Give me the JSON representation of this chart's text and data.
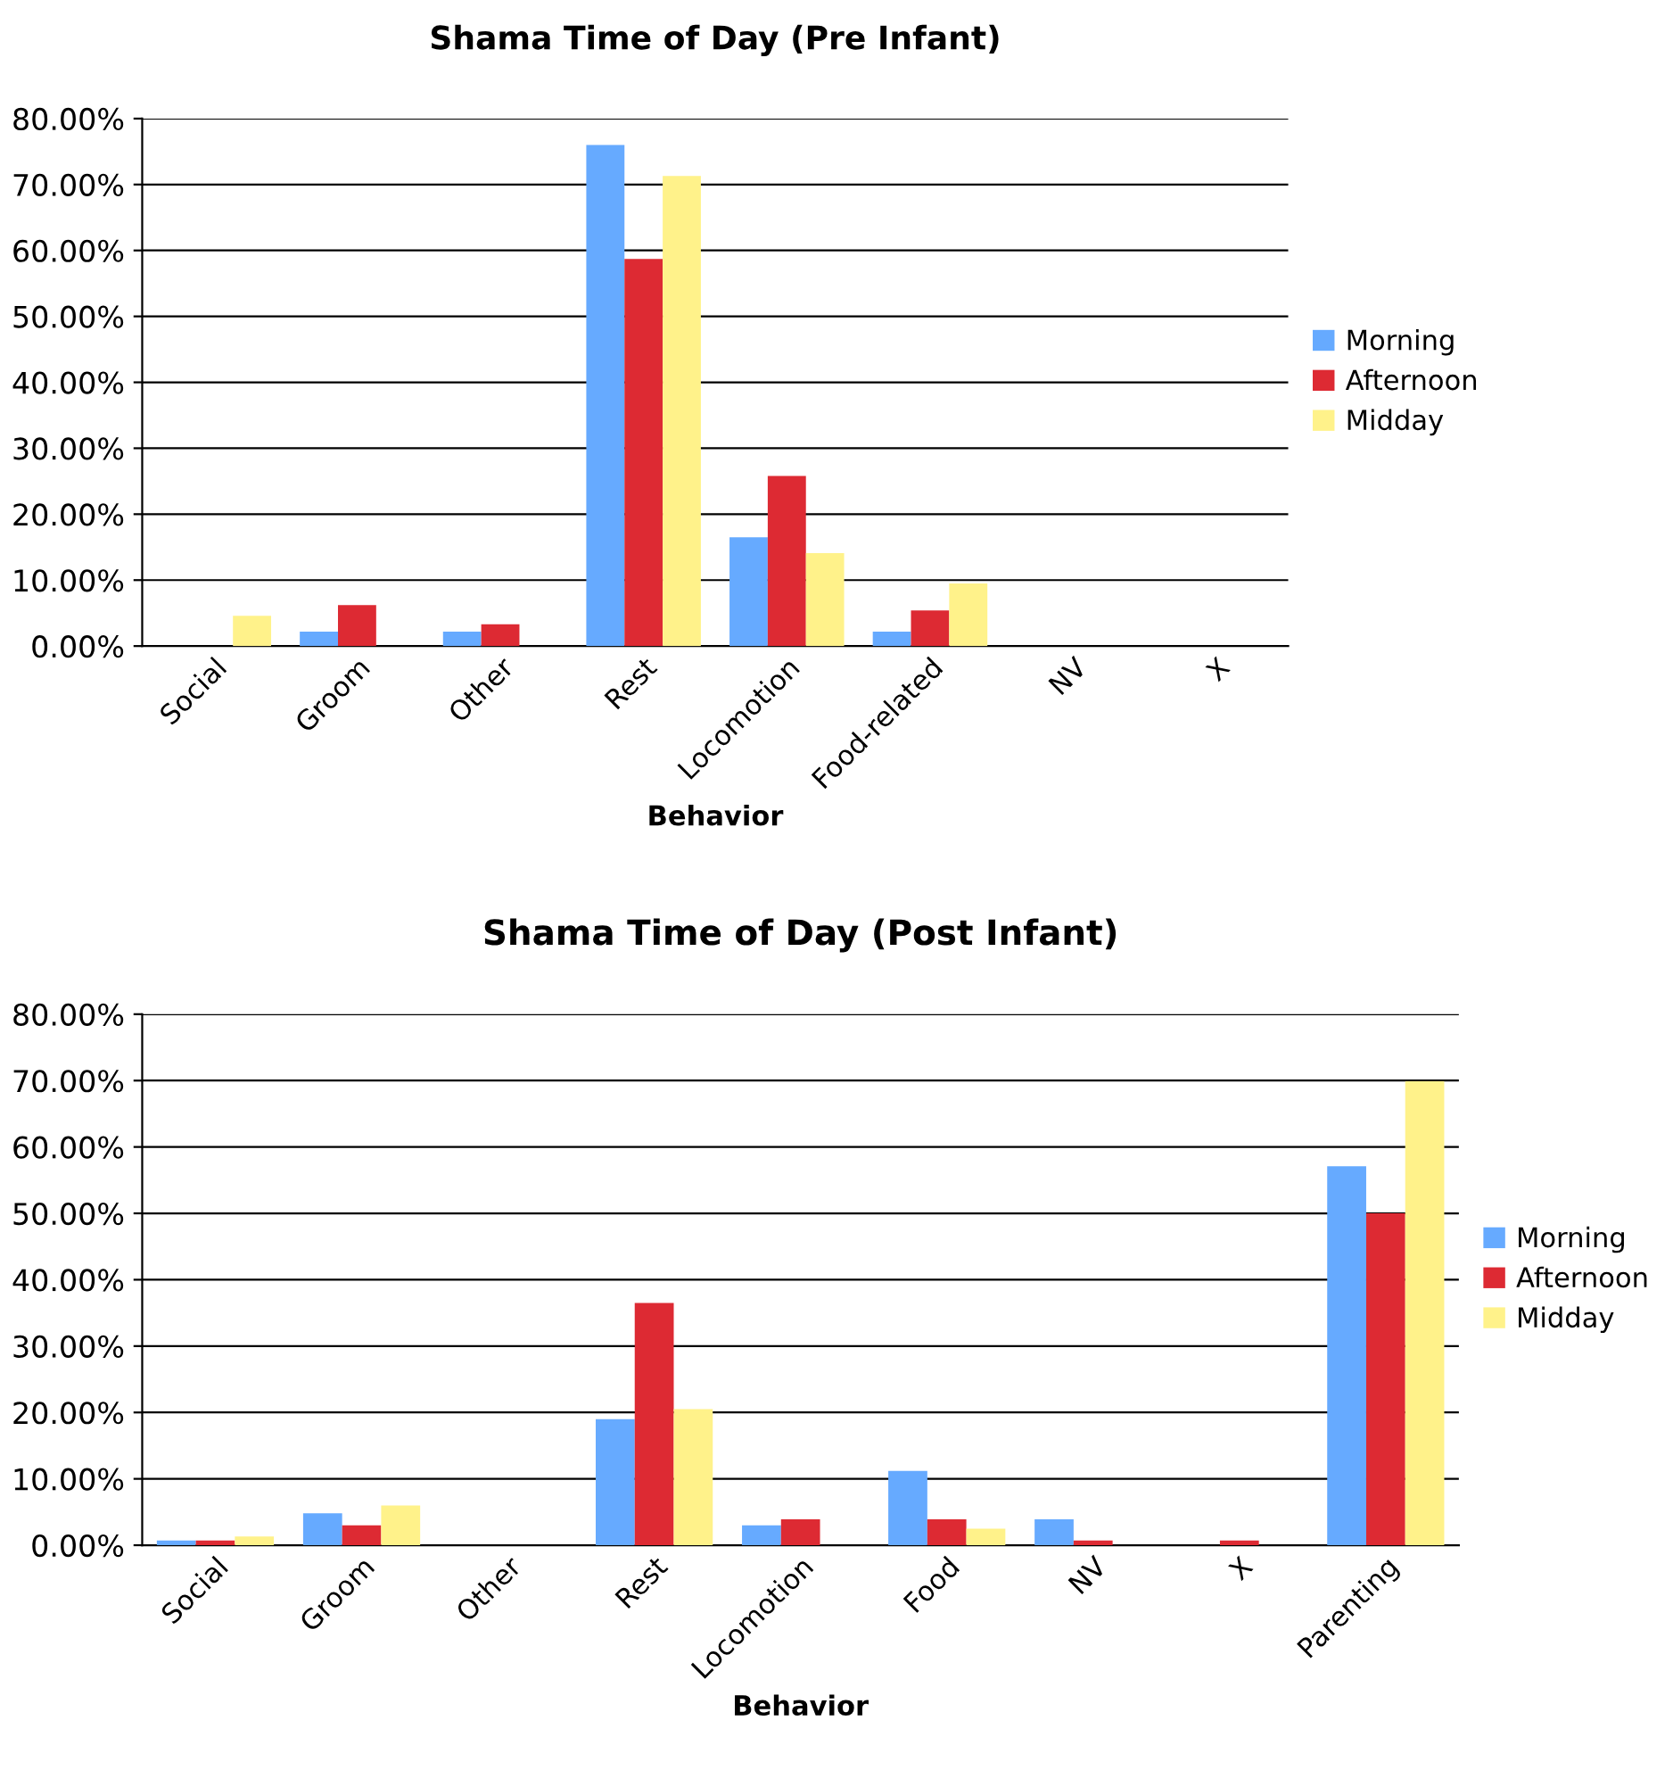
{
  "chart_data": [
    {
      "type": "bar",
      "title": "Shama Time of Day (Pre Infant)",
      "xlabel": "Behavior",
      "categories": [
        "Social",
        "Groom",
        "Other",
        "Rest",
        "Locomotion",
        "Food-related",
        "NV",
        "X"
      ],
      "series": [
        {
          "name": "Morning",
          "color": "#66aaff",
          "values": [
            0,
            2.2,
            2.2,
            76.0,
            16.5,
            2.2,
            0,
            0
          ]
        },
        {
          "name": "Afternoon",
          "color": "#dd2a33",
          "values": [
            0,
            6.2,
            3.3,
            58.7,
            25.8,
            5.4,
            0,
            0
          ]
        },
        {
          "name": "Midday",
          "color": "#fff28a",
          "values": [
            4.6,
            0,
            0,
            71.3,
            14.1,
            9.5,
            0,
            0
          ]
        }
      ],
      "ylim": [
        0,
        80
      ],
      "yticks": [
        {
          "value": 0,
          "label": "0.00%"
        },
        {
          "value": 10,
          "label": "10.00%"
        },
        {
          "value": 20,
          "label": "20.00%"
        },
        {
          "value": 30,
          "label": "30.00%"
        },
        {
          "value": 40,
          "label": "40.00%"
        },
        {
          "value": 50,
          "label": "50.00%"
        },
        {
          "value": 60,
          "label": "60.00%"
        },
        {
          "value": 70,
          "label": "70.00%"
        },
        {
          "value": 80,
          "label": "80.00%"
        }
      ],
      "grid": "y",
      "legend": "right"
    },
    {
      "type": "bar",
      "title": "Shama Time of Day (Post Infant)",
      "xlabel": "Behavior",
      "categories": [
        "Social",
        "Groom",
        "Other",
        "Rest",
        "Locomotion",
        "Food",
        "NV",
        "X",
        "Parenting"
      ],
      "series": [
        {
          "name": "Morning",
          "color": "#66aaff",
          "values": [
            0.7,
            4.8,
            0,
            19.0,
            3.0,
            11.2,
            3.9,
            0,
            57.1
          ]
        },
        {
          "name": "Afternoon",
          "color": "#dd2a33",
          "values": [
            0.7,
            3.0,
            0,
            36.5,
            3.9,
            3.9,
            0.7,
            0.7,
            50.0
          ]
        },
        {
          "name": "Midday",
          "color": "#fff28a",
          "values": [
            1.3,
            6.0,
            0,
            20.5,
            0,
            2.5,
            0,
            0,
            69.9
          ]
        }
      ],
      "ylim": [
        0,
        80
      ],
      "yticks": [
        {
          "value": 0,
          "label": "0.00%"
        },
        {
          "value": 10,
          "label": "10.00%"
        },
        {
          "value": 20,
          "label": "20.00%"
        },
        {
          "value": 30,
          "label": "30.00%"
        },
        {
          "value": 40,
          "label": "40.00%"
        },
        {
          "value": 50,
          "label": "50.00%"
        },
        {
          "value": 60,
          "label": "60.00%"
        },
        {
          "value": 70,
          "label": "70.00%"
        },
        {
          "value": 80,
          "label": "80.00%"
        }
      ],
      "grid": "y",
      "legend": "right"
    }
  ]
}
